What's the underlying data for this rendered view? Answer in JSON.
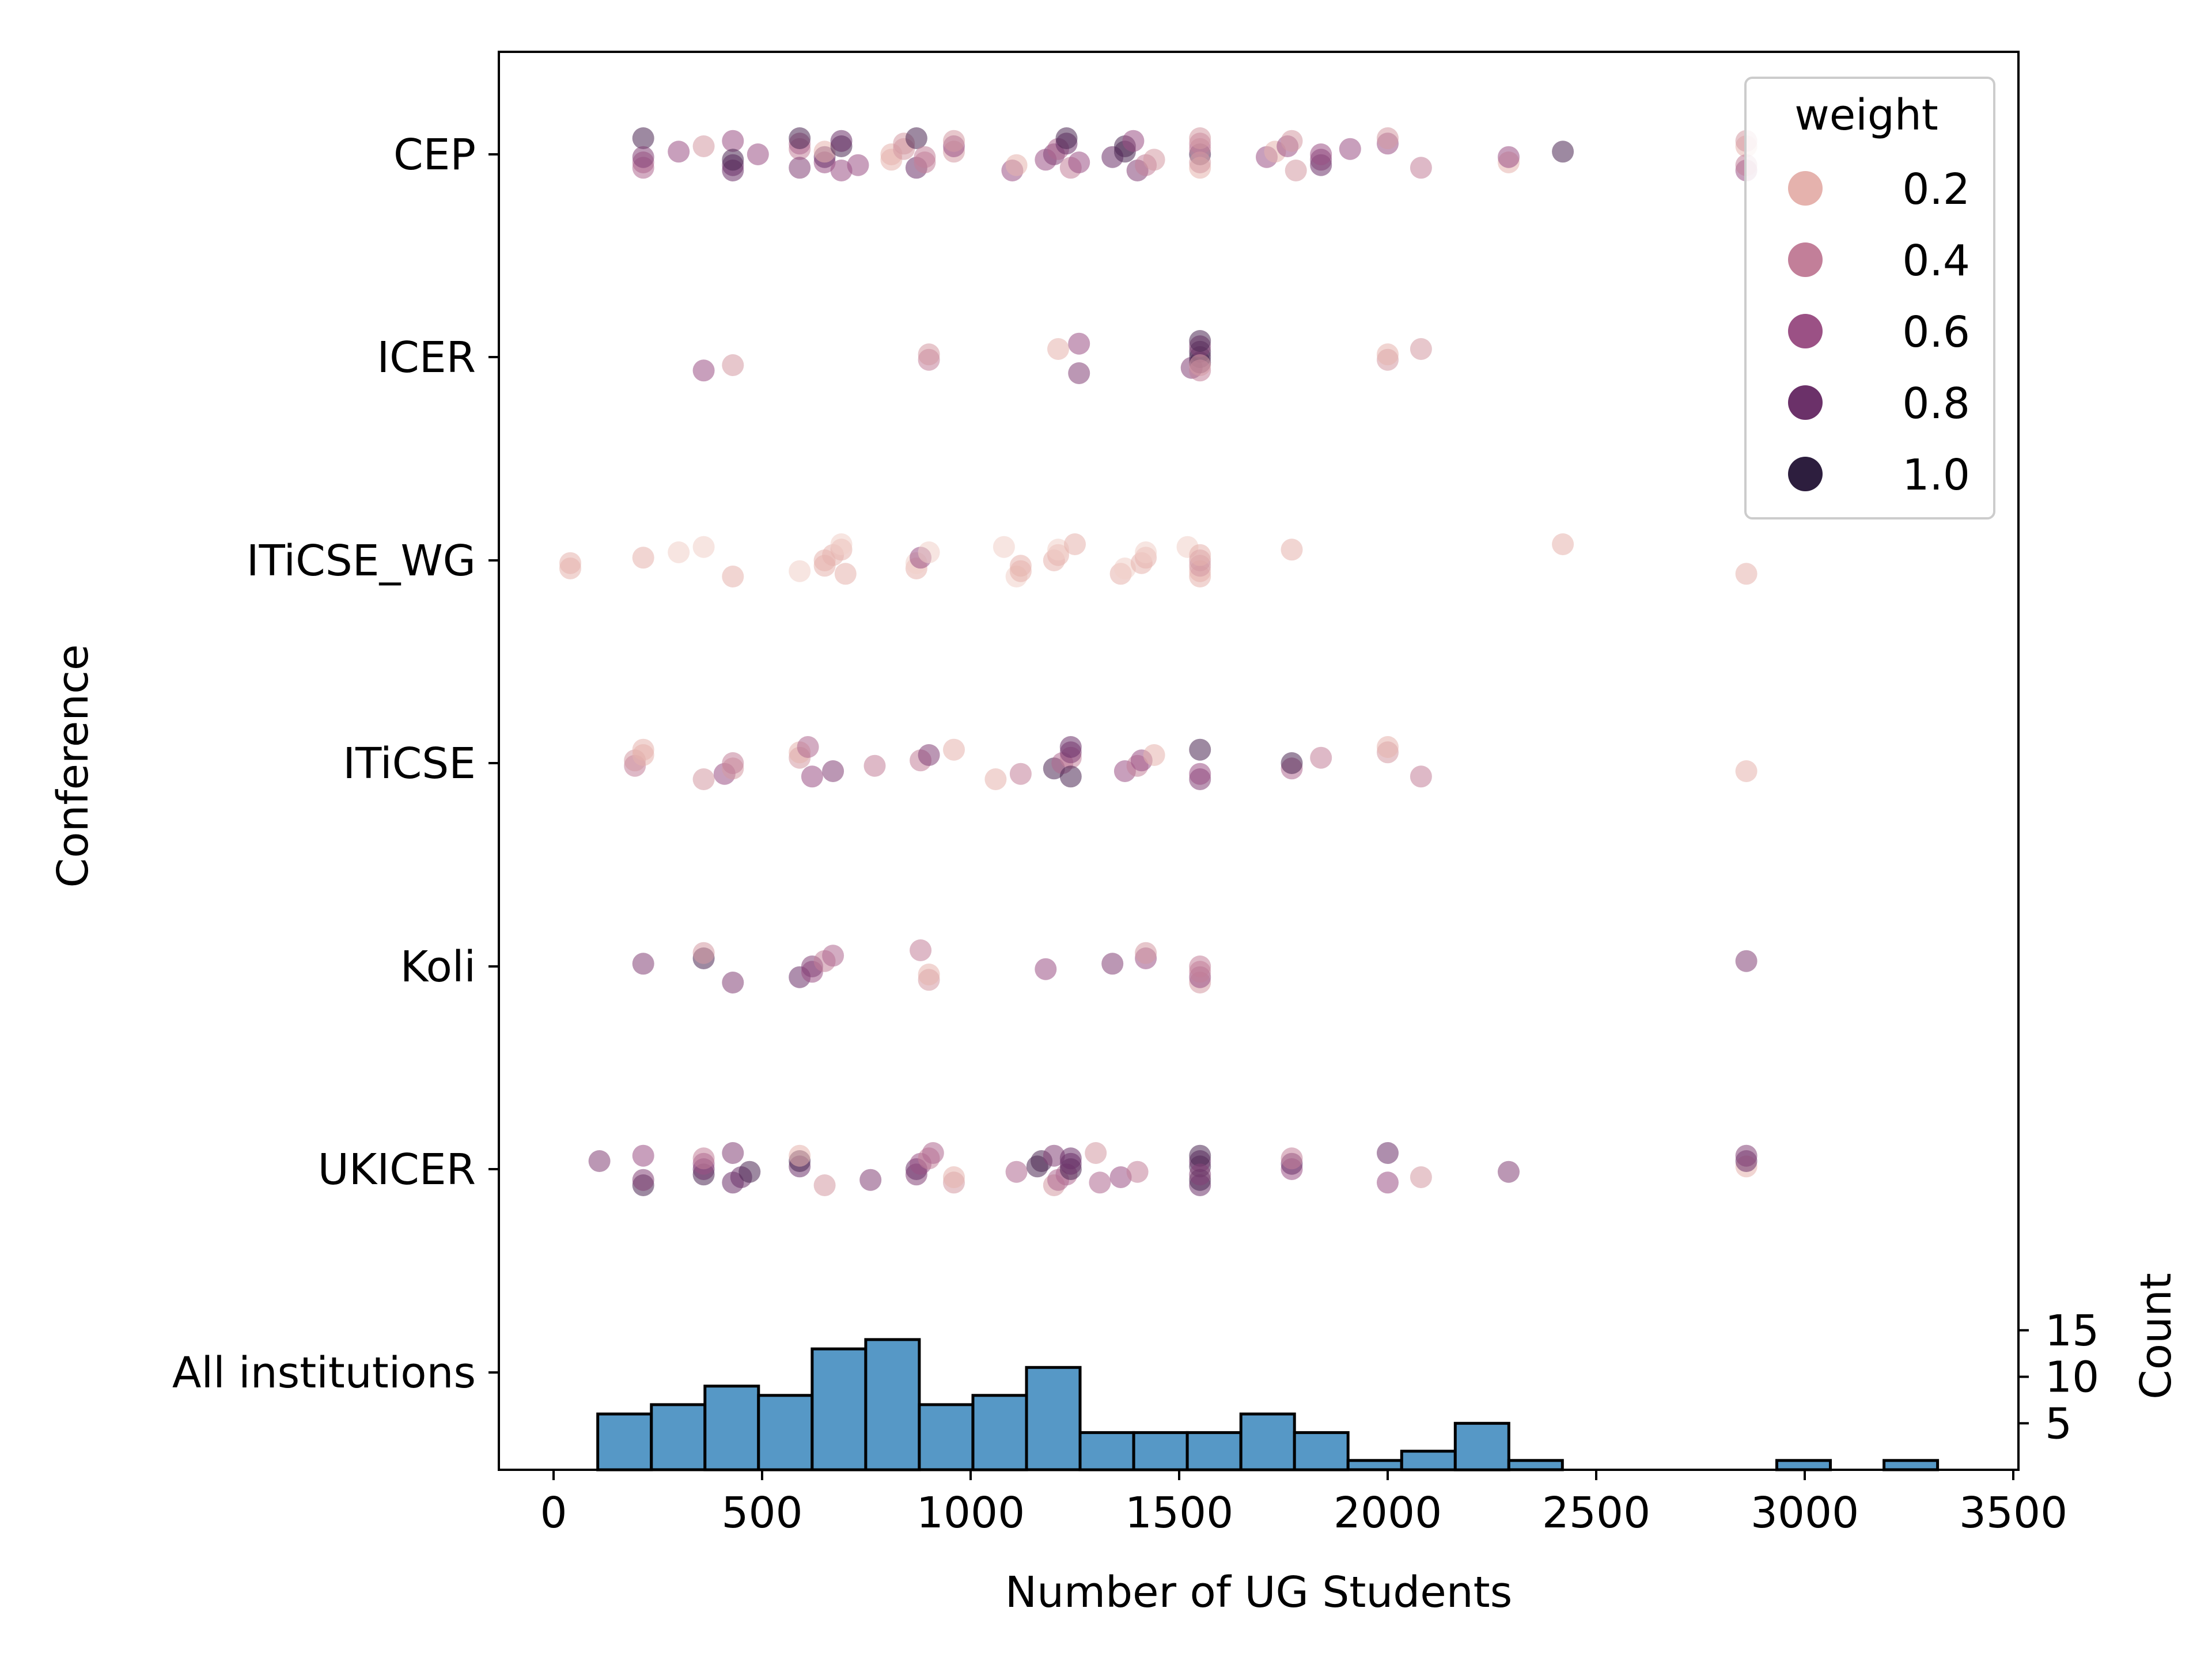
{
  "chart_data": {
    "type": "scatter",
    "xlabel": "Number of UG Students",
    "ylabel": "Conference",
    "xlim": [
      -130,
      3500
    ],
    "x_ticks": [
      0,
      500,
      1000,
      1500,
      2000,
      2500,
      3000,
      3500
    ],
    "categories": [
      "CEP",
      "ICER",
      "ITiCSE_WG",
      "ITiCSE",
      "Koli",
      "UKICER",
      "All institutions"
    ],
    "legend": {
      "title": "weight",
      "position": "top-right",
      "entries": [
        {
          "label": "0.2",
          "color": "#e5b2ad"
        },
        {
          "label": "0.4",
          "color": "#c27f99"
        },
        {
          "label": "0.6",
          "color": "#9b5185"
        },
        {
          "label": "0.8",
          "color": "#6b3169"
        },
        {
          "label": "1.0",
          "color": "#2d1e3e"
        }
      ]
    },
    "colors": {
      "histogram_fill": "#5698c6",
      "histogram_edge": "#000000"
    },
    "series": [
      {
        "category": "CEP",
        "points": [
          [
            215,
            0.9
          ],
          [
            215,
            0.5
          ],
          [
            215,
            0.5
          ],
          [
            215,
            0.7
          ],
          [
            300,
            0.6
          ],
          [
            360,
            0.3
          ],
          [
            430,
            0.6
          ],
          [
            430,
            0.8
          ],
          [
            430,
            0.8
          ],
          [
            430,
            0.9
          ],
          [
            490,
            0.6
          ],
          [
            590,
            0.4
          ],
          [
            590,
            0.5
          ],
          [
            590,
            0.9
          ],
          [
            590,
            0.7
          ],
          [
            650,
            0.6
          ],
          [
            650,
            0.8
          ],
          [
            650,
            0.2
          ],
          [
            690,
            0.9
          ],
          [
            690,
            0.8
          ],
          [
            690,
            0.6
          ],
          [
            730,
            0.6
          ],
          [
            810,
            0.2
          ],
          [
            810,
            0.2
          ],
          [
            840,
            0.3
          ],
          [
            840,
            0.3
          ],
          [
            870,
            0.9
          ],
          [
            870,
            0.8
          ],
          [
            890,
            0.4
          ],
          [
            890,
            0.4
          ],
          [
            960,
            0.3
          ],
          [
            960,
            0.6
          ],
          [
            960,
            0.3
          ],
          [
            1100,
            0.6
          ],
          [
            1110,
            0.2
          ],
          [
            1180,
            0.6
          ],
          [
            1200,
            0.7
          ],
          [
            1210,
            0.5
          ],
          [
            1230,
            0.8
          ],
          [
            1230,
            0.9
          ],
          [
            1240,
            0.4
          ],
          [
            1260,
            0.6
          ],
          [
            1340,
            0.8
          ],
          [
            1370,
            0.9
          ],
          [
            1370,
            0.9
          ],
          [
            1390,
            0.6
          ],
          [
            1400,
            0.7
          ],
          [
            1420,
            0.4
          ],
          [
            1440,
            0.3
          ],
          [
            1550,
            0.9
          ],
          [
            1550,
            0.4
          ],
          [
            1550,
            0.4
          ],
          [
            1550,
            0.3
          ],
          [
            1550,
            0.2
          ],
          [
            1550,
            0.3
          ],
          [
            1710,
            0.6
          ],
          [
            1730,
            0.2
          ],
          [
            1760,
            0.6
          ],
          [
            1770,
            0.3
          ],
          [
            1780,
            0.3
          ],
          [
            1840,
            0.8
          ],
          [
            1840,
            0.7
          ],
          [
            1840,
            0.6
          ],
          [
            1910,
            0.6
          ],
          [
            2000,
            0.6
          ],
          [
            2000,
            0.3
          ],
          [
            2080,
            0.4
          ],
          [
            2290,
            0.2
          ],
          [
            2290,
            0.6
          ],
          [
            2420,
            0.9
          ],
          [
            2860,
            0.2
          ],
          [
            2860,
            0.3
          ],
          [
            2860,
            0.6
          ],
          [
            2860,
            0.4
          ]
        ]
      },
      {
        "category": "ICER",
        "points": [
          [
            360,
            0.6
          ],
          [
            430,
            0.3
          ],
          [
            900,
            0.4
          ],
          [
            900,
            0.3
          ],
          [
            1210,
            0.2
          ],
          [
            1260,
            0.6
          ],
          [
            1260,
            0.7
          ],
          [
            1530,
            0.7
          ],
          [
            1550,
            0.9
          ],
          [
            1550,
            0.9
          ],
          [
            1550,
            0.9
          ],
          [
            1550,
            0.7
          ],
          [
            1550,
            0.9
          ],
          [
            1550,
            0.4
          ],
          [
            1550,
            0.3
          ],
          [
            2000,
            0.3
          ],
          [
            2000,
            0.2
          ],
          [
            2080,
            0.3
          ]
        ]
      },
      {
        "category": "ITiCSE_WG",
        "points": [
          [
            40,
            0.2
          ],
          [
            40,
            0.2
          ],
          [
            215,
            0.2
          ],
          [
            300,
            0.1
          ],
          [
            360,
            0.1
          ],
          [
            430,
            0.2
          ],
          [
            590,
            0.1
          ],
          [
            650,
            0.2
          ],
          [
            650,
            0.2
          ],
          [
            670,
            0.2
          ],
          [
            690,
            0.2
          ],
          [
            690,
            0.1
          ],
          [
            700,
            0.2
          ],
          [
            870,
            0.2
          ],
          [
            870,
            0.1
          ],
          [
            880,
            0.6
          ],
          [
            900,
            0.1
          ],
          [
            1080,
            0.1
          ],
          [
            1110,
            0.1
          ],
          [
            1120,
            0.2
          ],
          [
            1120,
            0.2
          ],
          [
            1200,
            0.2
          ],
          [
            1210,
            0.2
          ],
          [
            1210,
            0.1
          ],
          [
            1250,
            0.2
          ],
          [
            1360,
            0.2
          ],
          [
            1370,
            0.1
          ],
          [
            1410,
            0.2
          ],
          [
            1420,
            0.2
          ],
          [
            1420,
            0.1
          ],
          [
            1520,
            0.1
          ],
          [
            1550,
            0.2
          ],
          [
            1550,
            0.2
          ],
          [
            1550,
            0.3
          ],
          [
            1550,
            0.3
          ],
          [
            1550,
            0.2
          ],
          [
            1770,
            0.2
          ],
          [
            2420,
            0.2
          ],
          [
            2860,
            0.2
          ]
        ]
      },
      {
        "category": "ITiCSE",
        "points": [
          [
            195,
            0.4
          ],
          [
            195,
            0.3
          ],
          [
            215,
            0.2
          ],
          [
            215,
            0.2
          ],
          [
            360,
            0.3
          ],
          [
            410,
            0.6
          ],
          [
            430,
            0.3
          ],
          [
            430,
            0.4
          ],
          [
            590,
            0.3
          ],
          [
            590,
            0.2
          ],
          [
            610,
            0.5
          ],
          [
            620,
            0.6
          ],
          [
            670,
            0.7
          ],
          [
            770,
            0.4
          ],
          [
            880,
            0.4
          ],
          [
            900,
            0.7
          ],
          [
            960,
            0.2
          ],
          [
            1060,
            0.2
          ],
          [
            1120,
            0.4
          ],
          [
            1200,
            0.9
          ],
          [
            1220,
            0.5
          ],
          [
            1240,
            0.4
          ],
          [
            1240,
            0.7
          ],
          [
            1240,
            0.8
          ],
          [
            1240,
            0.9
          ],
          [
            1370,
            0.6
          ],
          [
            1400,
            0.4
          ],
          [
            1410,
            0.6
          ],
          [
            1440,
            0.2
          ],
          [
            1550,
            0.9
          ],
          [
            1550,
            0.7
          ],
          [
            1550,
            0.6
          ],
          [
            1770,
            0.5
          ],
          [
            1770,
            0.9
          ],
          [
            1840,
            0.4
          ],
          [
            2000,
            0.3
          ],
          [
            2000,
            0.2
          ],
          [
            2080,
            0.4
          ],
          [
            2860,
            0.2
          ]
        ]
      },
      {
        "category": "Koli",
        "points": [
          [
            215,
            0.7
          ],
          [
            360,
            0.9
          ],
          [
            360,
            0.3
          ],
          [
            430,
            0.7
          ],
          [
            590,
            0.8
          ],
          [
            620,
            0.6
          ],
          [
            620,
            0.7
          ],
          [
            650,
            0.4
          ],
          [
            670,
            0.5
          ],
          [
            880,
            0.4
          ],
          [
            900,
            0.3
          ],
          [
            900,
            0.2
          ],
          [
            1180,
            0.6
          ],
          [
            1340,
            0.7
          ],
          [
            1420,
            0.6
          ],
          [
            1420,
            0.3
          ],
          [
            1550,
            0.3
          ],
          [
            1550,
            0.6
          ],
          [
            1550,
            0.4
          ],
          [
            1550,
            0.4
          ],
          [
            2860,
            0.7
          ]
        ]
      },
      {
        "category": "UKICER",
        "points": [
          [
            110,
            0.7
          ],
          [
            215,
            0.6
          ],
          [
            215,
            0.9
          ],
          [
            215,
            0.7
          ],
          [
            360,
            0.9
          ],
          [
            360,
            0.8
          ],
          [
            360,
            0.6
          ],
          [
            360,
            0.4
          ],
          [
            430,
            0.7
          ],
          [
            430,
            0.8
          ],
          [
            450,
            0.8
          ],
          [
            470,
            0.9
          ],
          [
            590,
            0.8
          ],
          [
            590,
            0.9
          ],
          [
            590,
            0.2
          ],
          [
            650,
            0.3
          ],
          [
            760,
            0.7
          ],
          [
            870,
            0.7
          ],
          [
            870,
            0.8
          ],
          [
            880,
            0.6
          ],
          [
            900,
            0.4
          ],
          [
            910,
            0.5
          ],
          [
            960,
            0.3
          ],
          [
            960,
            0.2
          ],
          [
            1110,
            0.5
          ],
          [
            1160,
            0.9
          ],
          [
            1170,
            0.9
          ],
          [
            1200,
            0.7
          ],
          [
            1200,
            0.3
          ],
          [
            1210,
            0.5
          ],
          [
            1230,
            0.5
          ],
          [
            1240,
            0.9
          ],
          [
            1240,
            0.8
          ],
          [
            1240,
            0.8
          ],
          [
            1300,
            0.3
          ],
          [
            1310,
            0.5
          ],
          [
            1360,
            0.6
          ],
          [
            1400,
            0.4
          ],
          [
            1550,
            0.9
          ],
          [
            1550,
            0.8
          ],
          [
            1550,
            0.9
          ],
          [
            1550,
            0.8
          ],
          [
            1550,
            0.9
          ],
          [
            1550,
            0.7
          ],
          [
            1770,
            0.6
          ],
          [
            1770,
            0.8
          ],
          [
            1770,
            0.4
          ],
          [
            2000,
            0.8
          ],
          [
            2000,
            0.6
          ],
          [
            2080,
            0.3
          ],
          [
            2290,
            0.7
          ],
          [
            2860,
            0.2
          ],
          [
            2860,
            0.8
          ],
          [
            2860,
            0.7
          ]
        ]
      }
    ],
    "histogram": {
      "category": "All institutions",
      "ylabel": "Count",
      "y_ticks": [
        5,
        10,
        15
      ],
      "bin_width": 128.5,
      "bins": [
        {
          "x0": 106,
          "count": 6
        },
        {
          "x0": 234.5,
          "count": 7
        },
        {
          "x0": 363,
          "count": 9
        },
        {
          "x0": 491.5,
          "count": 8
        },
        {
          "x0": 620,
          "count": 13
        },
        {
          "x0": 748.5,
          "count": 14
        },
        {
          "x0": 877,
          "count": 7
        },
        {
          "x0": 1005.5,
          "count": 8
        },
        {
          "x0": 1134,
          "count": 11
        },
        {
          "x0": 1262.5,
          "count": 4
        },
        {
          "x0": 1391,
          "count": 4
        },
        {
          "x0": 1519.5,
          "count": 4
        },
        {
          "x0": 1648,
          "count": 6
        },
        {
          "x0": 1776.5,
          "count": 4
        },
        {
          "x0": 1905,
          "count": 1
        },
        {
          "x0": 2033.5,
          "count": 2
        },
        {
          "x0": 2162,
          "count": 5
        },
        {
          "x0": 2290.5,
          "count": 1
        },
        {
          "x0": 2419,
          "count": 0
        },
        {
          "x0": 2547.5,
          "count": 0
        },
        {
          "x0": 2676,
          "count": 0
        },
        {
          "x0": 2804.5,
          "count": 0
        },
        {
          "x0": 2933,
          "count": 1
        },
        {
          "x0": 3061.5,
          "count": 0
        },
        {
          "x0": 3190,
          "count": 1
        }
      ]
    }
  }
}
